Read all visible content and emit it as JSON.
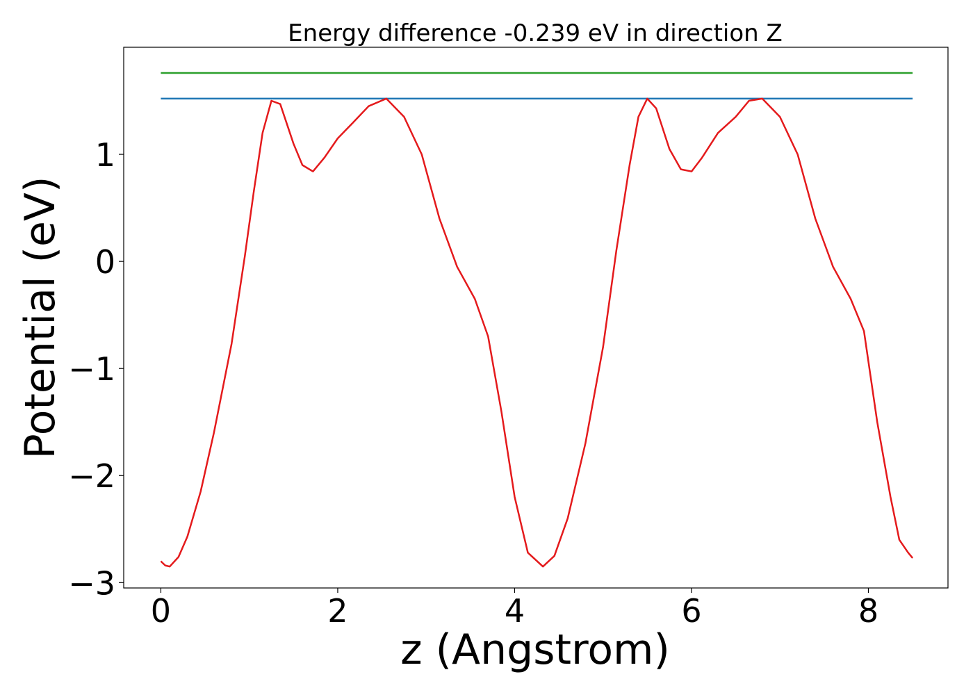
{
  "chart_data": {
    "type": "line",
    "title": "Energy difference -0.239 eV in direction Z",
    "xlabel": "z (Angstrom)",
    "ylabel": "Potential (eV)",
    "xlim": [
      -0.42,
      8.9
    ],
    "ylim": [
      -3.05,
      2.0
    ],
    "x_ticks": [
      0,
      2,
      4,
      6,
      8
    ],
    "x_tick_labels": [
      "0",
      "2",
      "4",
      "6",
      "8"
    ],
    "y_ticks": [
      1,
      0,
      -1,
      -2,
      -3
    ],
    "y_tick_labels": [
      "1",
      "0",
      "−1",
      "−2",
      "−3"
    ],
    "grid": false,
    "series": [
      {
        "color": "#2ca02c",
        "x": [
          0,
          8.5
        ],
        "y": [
          1.76,
          1.76
        ]
      },
      {
        "color": "#1f77b4",
        "x": [
          0,
          8.5
        ],
        "y": [
          1.52,
          1.52
        ]
      },
      {
        "color": "#e41a1c",
        "x": [
          0.0,
          0.05,
          0.1,
          0.2,
          0.3,
          0.45,
          0.6,
          0.8,
          0.95,
          1.05,
          1.15,
          1.25,
          1.35,
          1.5,
          1.6,
          1.72,
          1.85,
          2.0,
          2.2,
          2.35,
          2.55,
          2.75,
          2.95,
          3.15,
          3.35,
          3.55,
          3.7,
          3.85,
          4.0,
          4.15,
          4.32,
          4.45,
          4.6,
          4.8,
          5.0,
          5.15,
          5.3,
          5.4,
          5.5,
          5.6,
          5.75,
          5.88,
          6.0,
          6.12,
          6.3,
          6.5,
          6.65,
          6.8,
          7.0,
          7.2,
          7.4,
          7.6,
          7.8,
          7.95,
          8.1,
          8.25,
          8.35,
          8.45,
          8.5
        ],
        "y": [
          -2.8,
          -2.84,
          -2.85,
          -2.76,
          -2.57,
          -2.15,
          -1.6,
          -0.77,
          0.05,
          0.65,
          1.2,
          1.5,
          1.47,
          1.1,
          0.9,
          0.84,
          0.97,
          1.15,
          1.32,
          1.45,
          1.52,
          1.35,
          1.0,
          0.4,
          -0.05,
          -0.35,
          -0.7,
          -1.4,
          -2.2,
          -2.72,
          -2.85,
          -2.75,
          -2.4,
          -1.7,
          -0.8,
          0.1,
          0.9,
          1.35,
          1.52,
          1.43,
          1.05,
          0.86,
          0.84,
          0.97,
          1.2,
          1.35,
          1.5,
          1.52,
          1.35,
          1.0,
          0.4,
          -0.05,
          -0.35,
          -0.65,
          -1.5,
          -2.2,
          -2.6,
          -2.72,
          -2.77
        ]
      }
    ]
  }
}
